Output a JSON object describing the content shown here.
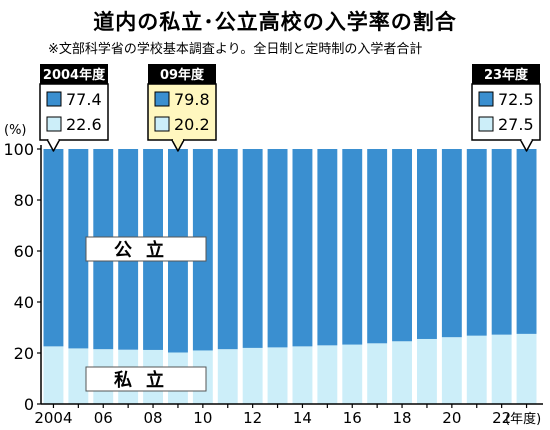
{
  "title": "道内の私立･公立高校の入学率の割合",
  "subtitle": "※文部科学省の学校基本調査より。全日制と定時制の入学者合計",
  "chart_data": {
    "type": "bar",
    "stacked": true,
    "ylabel": "(%)",
    "xlabel": "(年度)",
    "ylim": [
      0,
      100
    ],
    "yticks": [
      0,
      20,
      40,
      60,
      80,
      100
    ],
    "categories": [
      "2004",
      "2005",
      "2006",
      "2007",
      "2008",
      "2009",
      "2010",
      "2011",
      "2012",
      "2013",
      "2014",
      "2015",
      "2016",
      "2017",
      "2018",
      "2019",
      "2020",
      "2021",
      "2022",
      "2023"
    ],
    "xtick_labels": [
      "2004",
      "",
      "06",
      "",
      "08",
      "",
      "10",
      "",
      "12",
      "",
      "14",
      "",
      "16",
      "",
      "18",
      "",
      "20",
      "",
      "22",
      ""
    ],
    "series": [
      {
        "name": "私立",
        "color": "#cceef9",
        "values": [
          22.6,
          21.8,
          21.5,
          21.3,
          21.2,
          20.2,
          21.0,
          21.5,
          22.0,
          22.2,
          22.6,
          23.0,
          23.3,
          23.8,
          24.6,
          25.5,
          26.2,
          26.8,
          27.2,
          27.5
        ]
      },
      {
        "name": "公立",
        "color": "#3a8fd0",
        "values": [
          77.4,
          78.2,
          78.5,
          78.7,
          78.8,
          79.8,
          79.0,
          78.5,
          78.0,
          77.8,
          77.4,
          77.0,
          76.7,
          76.2,
          75.4,
          74.5,
          73.8,
          73.2,
          72.8,
          72.5
        ]
      }
    ],
    "callouts": [
      {
        "label": "2004年度",
        "public": "77.4",
        "private": "22.6",
        "index": 0,
        "highlight": false
      },
      {
        "label": "09年度",
        "public": "79.8",
        "private": "20.2",
        "index": 5,
        "highlight": true
      },
      {
        "label": "23年度",
        "public": "72.5",
        "private": "27.5",
        "index": 19,
        "highlight": false
      }
    ],
    "grid": false
  },
  "colors": {
    "public": "#3a8fd0",
    "private": "#cceef9",
    "highlight": "#fff7bf"
  }
}
